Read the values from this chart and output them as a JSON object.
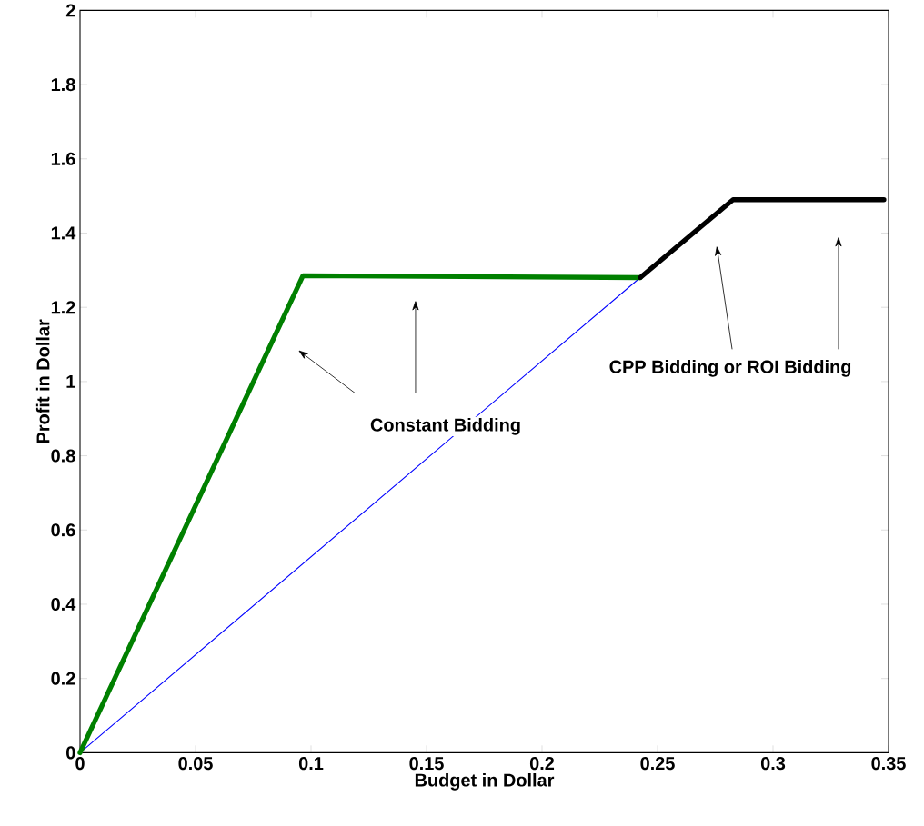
{
  "chart_data": {
    "type": "line",
    "xlabel": "Budget in Dollar",
    "ylabel": "Profit in Dollar",
    "series": [
      {
        "color": "#0000ff",
        "x": [
          0,
          0.2425
        ],
        "values": [
          0,
          1.28
        ]
      },
      {
        "color": "#008000",
        "x": [
          0,
          0.0965,
          0.2425
        ],
        "values": [
          0,
          1.285,
          1.28
        ]
      },
      {
        "color": "#000000",
        "x": [
          0.2425,
          0.2827,
          0.348
        ],
        "values": [
          1.28,
          1.49,
          1.49
        ]
      }
    ],
    "xlim": [
      0,
      0.35
    ],
    "ylim": [
      0,
      2
    ],
    "xticks": [
      0,
      0.05,
      0.1,
      0.15,
      0.2,
      0.25,
      0.3,
      0.35
    ],
    "yticks": [
      0,
      0.2,
      0.4,
      0.6,
      0.8,
      1,
      1.2,
      1.4,
      1.6,
      1.8,
      2
    ],
    "annotations": [
      "Constant Bidding",
      "CPP Bidding or ROI Bidding"
    ],
    "grid": false,
    "marker": "none",
    "line_style": "solid"
  }
}
